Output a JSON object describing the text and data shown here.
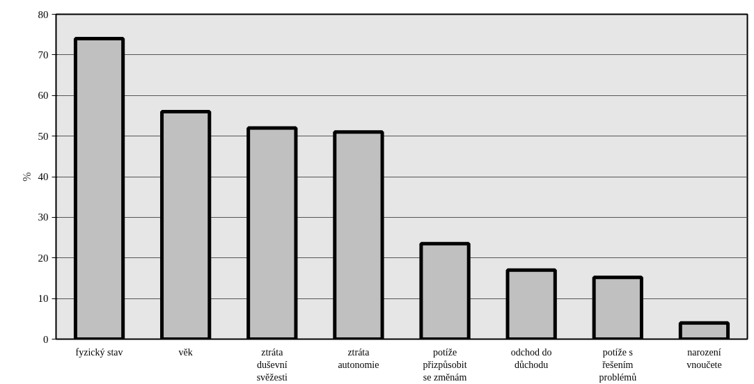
{
  "chart_data": {
    "type": "bar",
    "ylabel": "%",
    "categories": [
      "fyzický stav",
      "věk",
      "ztráta\nduševní\nsvěžesti",
      "ztráta\nautonomie",
      "potíže\npřizpůsobit\nse změnám",
      "odchod do\ndůchodu",
      "potíže s\nřešením\nproblémů",
      "narození\nvnoučete"
    ],
    "values": [
      74,
      56,
      52,
      51,
      23.5,
      17,
      15.2,
      4
    ],
    "color": "#c0c0c0",
    "ylim": [
      0,
      80
    ],
    "yticks": [
      0,
      10,
      20,
      30,
      40,
      50,
      60,
      70,
      80
    ],
    "grid": "y"
  }
}
